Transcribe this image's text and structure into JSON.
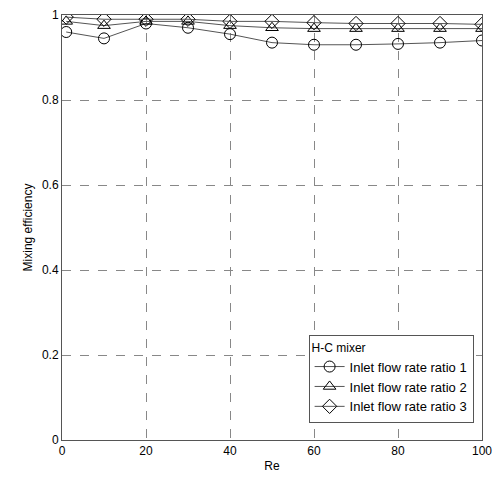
{
  "chart_data": {
    "type": "line",
    "x_label": "Re",
    "y_label": "Mixing efficiency",
    "legend_title": "H-C mixer",
    "x": [
      1,
      10,
      20,
      30,
      40,
      50,
      60,
      70,
      80,
      90,
      100
    ],
    "series": [
      {
        "name": "Inlet flow rate ratio 1",
        "color": "#555555",
        "marker": "circle",
        "values": [
          0.96,
          0.945,
          0.98,
          0.97,
          0.955,
          0.935,
          0.93,
          0.93,
          0.932,
          0.935,
          0.94
        ]
      },
      {
        "name": "Inlet flow rate ratio 2",
        "color": "#555555",
        "marker": "triangle",
        "values": [
          0.985,
          0.975,
          0.985,
          0.985,
          0.975,
          0.97,
          0.968,
          0.968,
          0.968,
          0.968,
          0.968
        ]
      },
      {
        "name": "Inlet flow rate ratio 3",
        "color": "#555555",
        "marker": "diamond",
        "values": [
          0.995,
          0.99,
          0.99,
          0.99,
          0.985,
          0.985,
          0.982,
          0.98,
          0.98,
          0.98,
          0.978
        ]
      }
    ],
    "xlim": [
      0,
      100
    ],
    "xticks": [
      0,
      20,
      40,
      60,
      80,
      100
    ],
    "ylim": [
      0,
      1
    ],
    "yticks": [
      0,
      0.2,
      0.4,
      0.6,
      0.8,
      1
    ],
    "grid": true,
    "legend": "lower right"
  }
}
